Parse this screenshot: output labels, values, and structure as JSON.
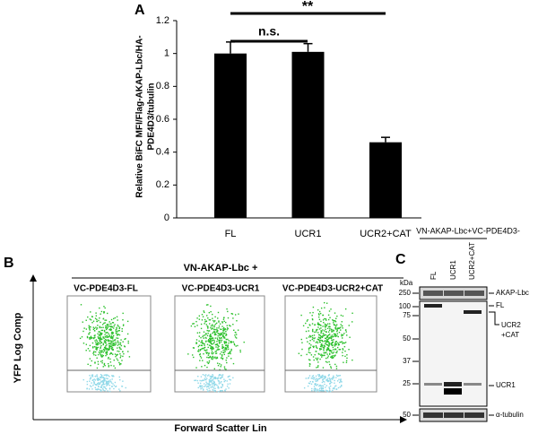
{
  "chart_data": {
    "type": "bar",
    "panel_label": "A",
    "y_label_lines": [
      "Relative BiFC MFI/Flag-AKAP-Lbc/HA-",
      "PDE4D3/tubulin"
    ],
    "categories": [
      "FL",
      "UCR1",
      "UCR2+CAT"
    ],
    "values": [
      1.0,
      1.01,
      0.46
    ],
    "errors": [
      0.07,
      0.05,
      0.03
    ],
    "color": "#000000",
    "ylim": [
      0,
      1.2
    ],
    "yticks": [
      0,
      0.2,
      0.4,
      0.6,
      0.8,
      1,
      1.2
    ],
    "annotations": [
      "n.s.",
      "**"
    ]
  },
  "panel_b": {
    "label": "B",
    "header": "VN-AKAP-Lbc +",
    "plots": [
      "VC-PDE4D3-FL",
      "VC-PDE4D3-UCR1",
      "VC-PDE4D3-UCR2+CAT"
    ],
    "y_axis": "YFP Log Comp",
    "x_axis": "Forward Scatter Lin"
  },
  "panel_c": {
    "label": "C",
    "header": "VN-AKAP-Lbc+VC-PDE4D3-",
    "lanes": [
      "FL",
      "UCR1",
      "UCR2+CAT"
    ],
    "kda_label": "kDa",
    "markers": [
      250,
      100,
      75,
      50,
      37,
      25,
      50
    ],
    "band_labels": [
      "AKAP-Lbc",
      "FL",
      "UCR2",
      "+CAT",
      "UCR1",
      "α-tubulin"
    ]
  }
}
